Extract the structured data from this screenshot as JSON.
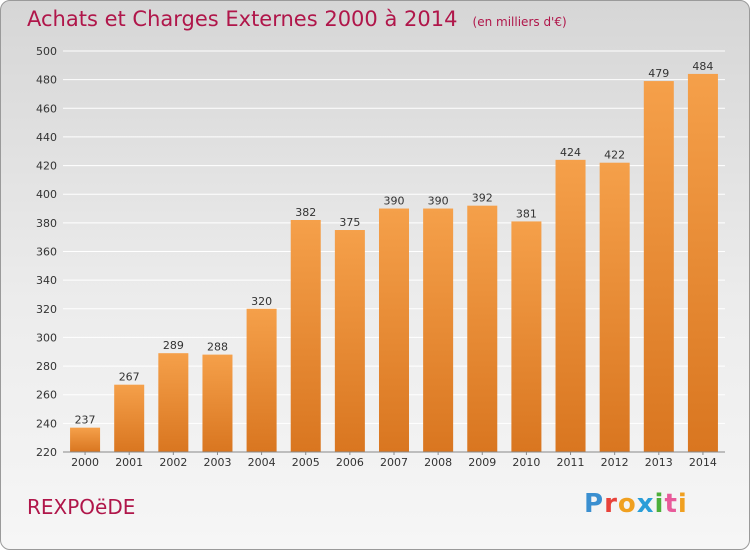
{
  "chart_data": {
    "type": "bar",
    "title": "Achats et Charges Externes 2000 à 2014",
    "subtitle": "(en milliers d'€)",
    "categories": [
      "2000",
      "2001",
      "2002",
      "2003",
      "2004",
      "2005",
      "2006",
      "2007",
      "2008",
      "2009",
      "2010",
      "2011",
      "2012",
      "2013",
      "2014"
    ],
    "values": [
      237,
      267,
      289,
      288,
      320,
      382,
      375,
      390,
      390,
      392,
      381,
      424,
      422,
      479,
      484
    ],
    "ylim": [
      220,
      500
    ],
    "yticks": [
      220,
      240,
      260,
      280,
      300,
      320,
      340,
      360,
      380,
      400,
      420,
      440,
      460,
      480,
      500
    ],
    "grid": true,
    "bar_color_top": "#f5a04a",
    "bar_color_bottom": "#d97620"
  },
  "footer": {
    "commune": "REXPOëDE",
    "logo_letters": [
      "P",
      "r",
      "o",
      "x",
      "i",
      "t",
      "i"
    ],
    "logo_colors": [
      "#3a8fd0",
      "#e8423a",
      "#f0a020",
      "#2a9ed8",
      "#4caf3a",
      "#e85a9a",
      "#f0a020"
    ]
  },
  "colors": {
    "title": "#b0164a",
    "grid": "#ffffff",
    "axis_text": "#333333"
  }
}
